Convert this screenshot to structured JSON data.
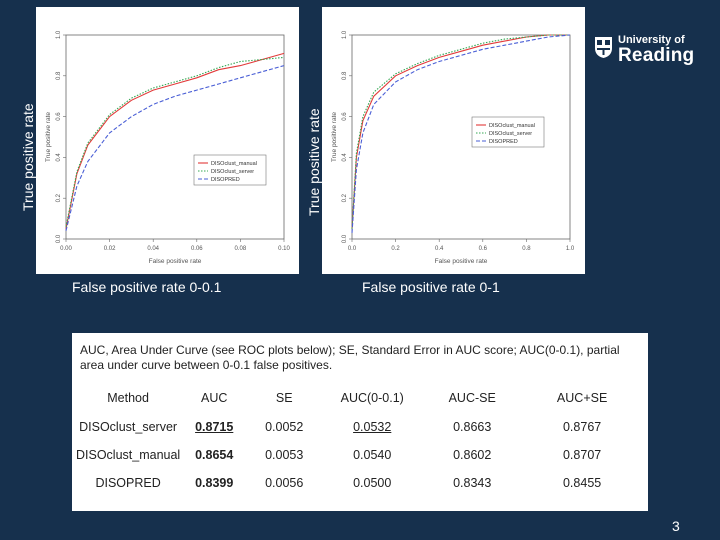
{
  "slide": {
    "ylabel_left": "True positive rate",
    "ylabel_right": "True positive rate",
    "xcaption_left": "False positive rate 0-0.1",
    "xcaption_right": "False positive rate 0-1",
    "page_number": "3"
  },
  "logo": {
    "line1": "University of",
    "line2": "Reading"
  },
  "chart_data": [
    {
      "type": "line",
      "xlabel": "False positive rate",
      "ylabel": "True positive rate",
      "xlim": [
        0,
        0.1
      ],
      "ylim": [
        0,
        1
      ],
      "xticks": [
        "0.00",
        "0.02",
        "0.04",
        "0.06",
        "0.08",
        "0.10"
      ],
      "yticks": [
        "0.0",
        "0.2",
        "0.4",
        "0.6",
        "0.8",
        "1.0"
      ],
      "legend_position": "right",
      "series": [
        {
          "name": "DISOclust_manual",
          "color": "#e23a3a",
          "x": [
            0,
            0.005,
            0.01,
            0.02,
            0.03,
            0.04,
            0.05,
            0.06,
            0.07,
            0.08,
            0.09,
            0.1
          ],
          "y": [
            0.05,
            0.32,
            0.46,
            0.6,
            0.68,
            0.73,
            0.76,
            0.79,
            0.83,
            0.85,
            0.88,
            0.91
          ]
        },
        {
          "name": "DISOclust_server",
          "color": "#34a853",
          "x": [
            0,
            0.005,
            0.01,
            0.02,
            0.03,
            0.04,
            0.05,
            0.06,
            0.07,
            0.08,
            0.09,
            0.1
          ],
          "y": [
            0.06,
            0.33,
            0.47,
            0.61,
            0.69,
            0.74,
            0.77,
            0.8,
            0.84,
            0.87,
            0.88,
            0.89
          ]
        },
        {
          "name": "DISOPRED",
          "color": "#4a5fd6",
          "x": [
            0,
            0.005,
            0.01,
            0.02,
            0.03,
            0.04,
            0.05,
            0.06,
            0.07,
            0.08,
            0.09,
            0.1
          ],
          "y": [
            0.04,
            0.26,
            0.38,
            0.52,
            0.6,
            0.66,
            0.7,
            0.73,
            0.76,
            0.79,
            0.82,
            0.85
          ]
        }
      ]
    },
    {
      "type": "line",
      "xlabel": "False positive rate",
      "ylabel": "True positive rate",
      "xlim": [
        0,
        1
      ],
      "ylim": [
        0,
        1
      ],
      "xticks": [
        "0.0",
        "0.2",
        "0.4",
        "0.6",
        "0.8",
        "1.0"
      ],
      "yticks": [
        "0.0",
        "0.2",
        "0.4",
        "0.6",
        "0.8",
        "1.0"
      ],
      "legend_position": "right",
      "series": [
        {
          "name": "DISOclust_manual",
          "color": "#e23a3a",
          "x": [
            0,
            0.02,
            0.05,
            0.1,
            0.2,
            0.3,
            0.4,
            0.5,
            0.6,
            0.7,
            0.8,
            0.9,
            1.0
          ],
          "y": [
            0.05,
            0.4,
            0.58,
            0.7,
            0.8,
            0.85,
            0.89,
            0.92,
            0.95,
            0.97,
            0.99,
            1.0,
            1.0
          ]
        },
        {
          "name": "DISOclust_server",
          "color": "#34a853",
          "x": [
            0,
            0.02,
            0.05,
            0.1,
            0.2,
            0.3,
            0.4,
            0.5,
            0.6,
            0.7,
            0.8,
            0.9,
            1.0
          ],
          "y": [
            0.05,
            0.42,
            0.6,
            0.72,
            0.81,
            0.86,
            0.9,
            0.93,
            0.96,
            0.98,
            0.99,
            1.0,
            1.0
          ]
        },
        {
          "name": "DISOPRED",
          "color": "#4a5fd6",
          "x": [
            0,
            0.02,
            0.05,
            0.1,
            0.2,
            0.3,
            0.4,
            0.5,
            0.6,
            0.7,
            0.8,
            0.9,
            1.0
          ],
          "y": [
            0.03,
            0.34,
            0.52,
            0.66,
            0.77,
            0.83,
            0.87,
            0.9,
            0.93,
            0.95,
            0.97,
            0.99,
            1.0
          ]
        }
      ]
    }
  ],
  "table": {
    "caption": "AUC, Area Under Curve (see ROC plots below); SE, Standard Error in AUC score; AUC(0-0.1), partial area under curve between 0-0.1 false positives.",
    "headers": [
      "Method",
      "AUC",
      "SE",
      "AUC(0-0.1)",
      "AUC-SE",
      "AUC+SE"
    ],
    "rows": [
      [
        "DISOclust_server",
        "0.8715",
        "0.0052",
        "0.0532",
        "0.8663",
        "0.8767"
      ],
      [
        "DISOclust_manual",
        "0.8654",
        "0.0053",
        "0.0540",
        "0.8602",
        "0.8707"
      ],
      [
        "DISOPRED",
        "0.8399",
        "0.0056",
        "0.0500",
        "0.8343",
        "0.8455"
      ]
    ]
  }
}
